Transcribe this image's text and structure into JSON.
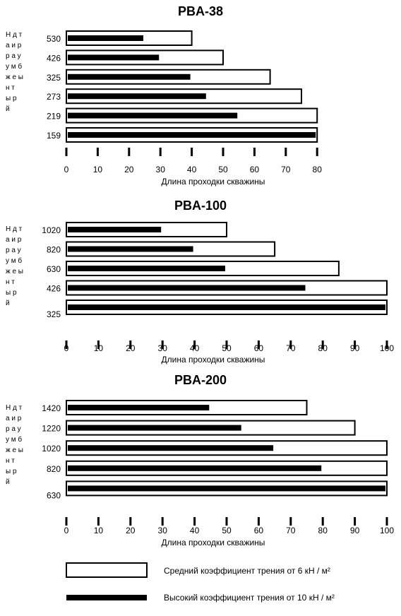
{
  "chart_data": [
    {
      "type": "bar",
      "title": "PBA-38",
      "ylabel": "Наружный диаметр",
      "xlabel": "Длина проходки скважины",
      "categories": [
        "530",
        "426",
        "325",
        "273",
        "219",
        "159"
      ],
      "series": [
        {
          "name": "Средний коэффициент трения от 6 кН / м²",
          "values": [
            40,
            50,
            65,
            75,
            80,
            80
          ]
        },
        {
          "name": "Высокий коэффициент трения от 10 кН / м²",
          "values": [
            25,
            30,
            40,
            45,
            55,
            80
          ]
        }
      ],
      "xlim": [
        0,
        80
      ],
      "xticks": [
        0,
        10,
        20,
        30,
        40,
        50,
        60,
        70,
        80
      ]
    },
    {
      "type": "bar",
      "title": "PBA-100",
      "ylabel": "Наружный диаметр",
      "xlabel": "Длина проходки скважины",
      "categories": [
        "1020",
        "820",
        "630",
        "426",
        "325"
      ],
      "series": [
        {
          "name": "Средний коэффициент трения от 6 кН / м²",
          "values": [
            50,
            65,
            85,
            100,
            100
          ]
        },
        {
          "name": "Высокий коэффициент трения от 10 кН / м²",
          "values": [
            30,
            40,
            50,
            75,
            100
          ]
        }
      ],
      "xlim": [
        0,
        100
      ],
      "xticks": [
        0,
        10,
        20,
        30,
        40,
        50,
        60,
        70,
        80,
        90,
        100
      ]
    },
    {
      "type": "bar",
      "title": "PBA-200",
      "ylabel": "Наружный диаметр",
      "xlabel": "Длина проходки скважины",
      "categories": [
        "1420",
        "1220",
        "1020",
        "820",
        "630"
      ],
      "series": [
        {
          "name": "Средний коэффициент трения от 6 кН / м²",
          "values": [
            75,
            90,
            100,
            100,
            100
          ]
        },
        {
          "name": "Высокий коэффициент трения от 10 кН / м²",
          "values": [
            45,
            55,
            65,
            80,
            100
          ]
        }
      ],
      "xlim": [
        0,
        100
      ],
      "xticks": [
        0,
        10,
        20,
        30,
        40,
        50,
        60,
        70,
        80,
        90,
        100
      ]
    }
  ],
  "vertical_label_rows": [
    "Н д т",
    "а и р",
    "р а у",
    "у м б",
    "ж е ы",
    "н т",
    "ы р",
    "й"
  ],
  "legend": {
    "medium": "Средний коэффициент трения от 6 кН / м²",
    "high": "Высокий коэффициент трения от 10 кН / м²"
  }
}
